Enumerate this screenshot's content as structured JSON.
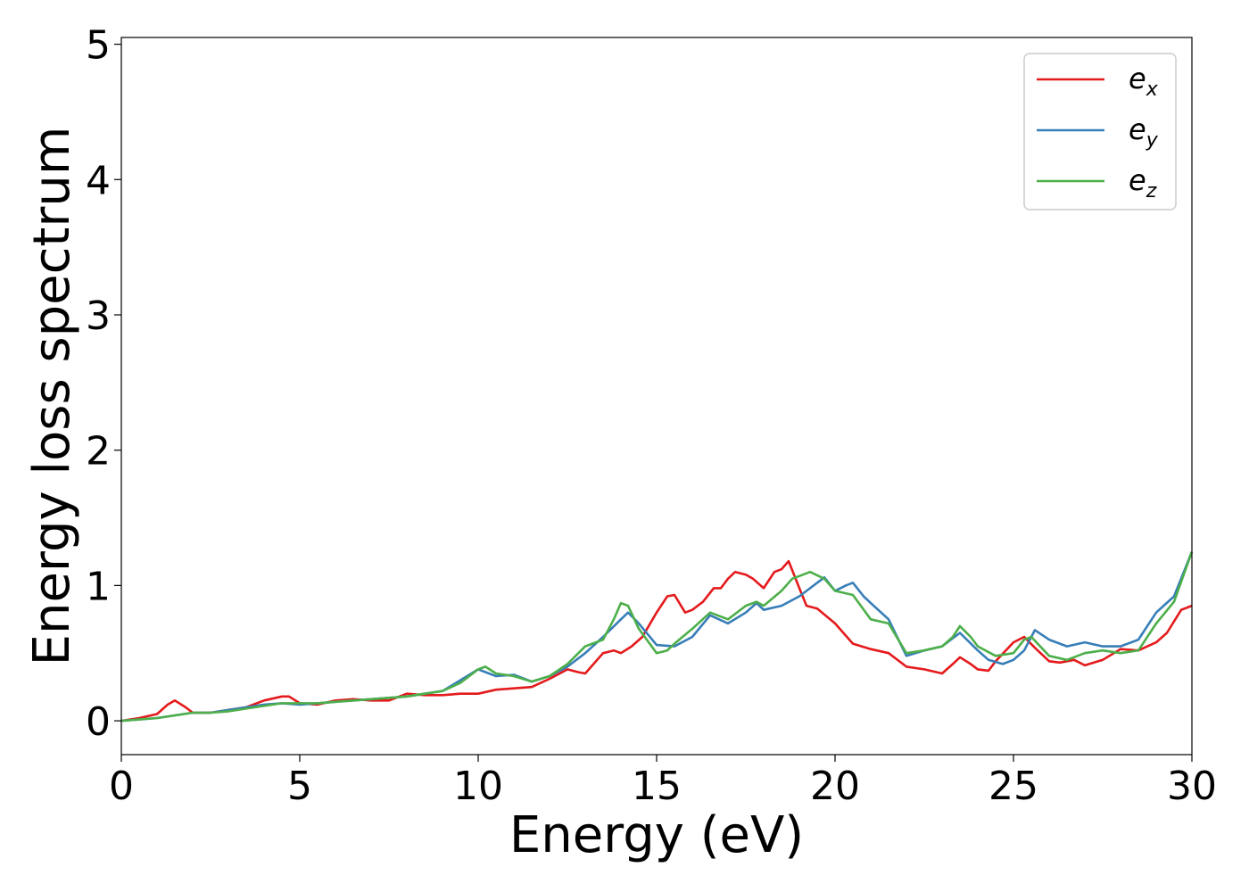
{
  "chart_data": {
    "type": "line",
    "title": "",
    "xlabel": "Energy (eV)",
    "ylabel": "Energy loss spectrum",
    "xlim": [
      0,
      30
    ],
    "ylim": [
      -0.25,
      5.05
    ],
    "xticks": [
      "0",
      "5",
      "10",
      "15",
      "20",
      "25",
      "30"
    ],
    "yticks": [
      "0",
      "1",
      "2",
      "3",
      "4",
      "5"
    ],
    "grid": false,
    "legend_position": "top-right",
    "series": [
      {
        "name": "e_x",
        "label_base": "e",
        "label_sub": "x",
        "color": "#e41a1c",
        "x": [
          0,
          0.5,
          1,
          1.3,
          1.5,
          1.8,
          2,
          2.5,
          3,
          3.5,
          4,
          4.5,
          4.7,
          5,
          5.5,
          6,
          6.5,
          7,
          7.5,
          8,
          8.5,
          9,
          9.5,
          10,
          10.5,
          11,
          11.5,
          12,
          12.5,
          12.8,
          13,
          13.5,
          13.8,
          14,
          14.3,
          14.6,
          15,
          15.3,
          15.5,
          15.8,
          16,
          16.3,
          16.6,
          16.8,
          17,
          17.2,
          17.5,
          17.7,
          18,
          18.3,
          18.5,
          18.7,
          19,
          19.2,
          19.5,
          20,
          20.5,
          21,
          21.5,
          22,
          22.5,
          23,
          23.3,
          23.5,
          23.8,
          24,
          24.3,
          24.5,
          25,
          25.3,
          25.6,
          26,
          26.3,
          26.7,
          27,
          27.5,
          28,
          28.5,
          29,
          29.3,
          29.7,
          30
        ],
        "y": [
          0,
          0.02,
          0.05,
          0.12,
          0.15,
          0.1,
          0.06,
          0.06,
          0.08,
          0.1,
          0.15,
          0.18,
          0.18,
          0.13,
          0.12,
          0.15,
          0.16,
          0.15,
          0.15,
          0.2,
          0.19,
          0.19,
          0.2,
          0.2,
          0.23,
          0.24,
          0.25,
          0.31,
          0.38,
          0.36,
          0.35,
          0.5,
          0.52,
          0.5,
          0.55,
          0.62,
          0.8,
          0.92,
          0.93,
          0.8,
          0.82,
          0.88,
          0.98,
          0.98,
          1.05,
          1.1,
          1.08,
          1.05,
          0.98,
          1.1,
          1.12,
          1.18,
          0.98,
          0.85,
          0.83,
          0.72,
          0.57,
          0.53,
          0.5,
          0.4,
          0.38,
          0.35,
          0.42,
          0.47,
          0.42,
          0.38,
          0.37,
          0.44,
          0.58,
          0.62,
          0.54,
          0.44,
          0.43,
          0.45,
          0.41,
          0.45,
          0.53,
          0.52,
          0.58,
          0.65,
          0.82,
          0.85
        ]
      },
      {
        "name": "e_y",
        "label_base": "e",
        "label_sub": "y",
        "color": "#377eb8",
        "x": [
          0,
          0.5,
          1,
          1.5,
          2,
          2.5,
          3,
          3.5,
          4,
          4.5,
          5,
          5.5,
          6,
          6.5,
          7,
          7.5,
          8,
          8.5,
          9,
          9.5,
          10,
          10.5,
          11,
          11.5,
          12,
          12.5,
          13,
          13.5,
          14,
          14.2,
          14.5,
          15,
          15.5,
          16,
          16.5,
          17,
          17.5,
          17.8,
          18,
          18.5,
          19,
          19.3,
          19.7,
          20,
          20.3,
          20.5,
          20.8,
          21,
          21.5,
          22,
          22.5,
          23,
          23.5,
          24,
          24.3,
          24.7,
          25,
          25.3,
          25.6,
          26,
          26.5,
          27,
          27.5,
          28,
          28.5,
          29,
          29.5,
          30
        ],
        "y": [
          0,
          0.01,
          0.02,
          0.04,
          0.06,
          0.06,
          0.08,
          0.1,
          0.12,
          0.13,
          0.12,
          0.13,
          0.14,
          0.15,
          0.16,
          0.17,
          0.18,
          0.2,
          0.22,
          0.3,
          0.38,
          0.33,
          0.34,
          0.29,
          0.33,
          0.4,
          0.5,
          0.62,
          0.75,
          0.8,
          0.72,
          0.56,
          0.55,
          0.62,
          0.78,
          0.72,
          0.8,
          0.87,
          0.82,
          0.85,
          0.92,
          0.98,
          1.06,
          0.96,
          1.0,
          1.02,
          0.92,
          0.87,
          0.75,
          0.48,
          0.52,
          0.55,
          0.65,
          0.52,
          0.45,
          0.42,
          0.45,
          0.52,
          0.67,
          0.6,
          0.55,
          0.58,
          0.55,
          0.55,
          0.6,
          0.8,
          0.92,
          1.25
        ]
      },
      {
        "name": "e_z",
        "label_base": "e",
        "label_sub": "z",
        "color": "#4daf4a",
        "x": [
          0,
          0.5,
          1,
          1.5,
          2,
          2.5,
          3,
          3.5,
          4,
          4.5,
          5,
          5.5,
          6,
          6.5,
          7,
          7.5,
          8,
          8.5,
          9,
          9.5,
          10,
          10.2,
          10.5,
          11,
          11.5,
          12,
          12.5,
          13,
          13.5,
          13.8,
          14,
          14.2,
          14.5,
          15,
          15.3,
          15.5,
          16,
          16.5,
          17,
          17.5,
          17.8,
          18,
          18.5,
          18.8,
          19,
          19.3,
          19.7,
          20,
          20.5,
          21,
          21.5,
          22,
          22.5,
          23,
          23.3,
          23.5,
          23.8,
          24,
          24.5,
          25,
          25.3,
          25.5,
          26,
          26.5,
          27,
          27.5,
          28,
          28.5,
          29,
          29.5,
          30
        ],
        "y": [
          0,
          0.01,
          0.02,
          0.04,
          0.06,
          0.06,
          0.07,
          0.09,
          0.11,
          0.13,
          0.13,
          0.13,
          0.14,
          0.15,
          0.16,
          0.17,
          0.18,
          0.2,
          0.22,
          0.28,
          0.38,
          0.4,
          0.35,
          0.33,
          0.29,
          0.33,
          0.42,
          0.55,
          0.6,
          0.75,
          0.87,
          0.85,
          0.68,
          0.5,
          0.52,
          0.57,
          0.68,
          0.8,
          0.75,
          0.85,
          0.88,
          0.85,
          0.96,
          1.05,
          1.07,
          1.1,
          1.05,
          0.96,
          0.93,
          0.75,
          0.72,
          0.5,
          0.52,
          0.55,
          0.62,
          0.7,
          0.62,
          0.55,
          0.48,
          0.5,
          0.6,
          0.62,
          0.48,
          0.45,
          0.5,
          0.52,
          0.5,
          0.52,
          0.72,
          0.88,
          1.25
        ]
      }
    ]
  }
}
